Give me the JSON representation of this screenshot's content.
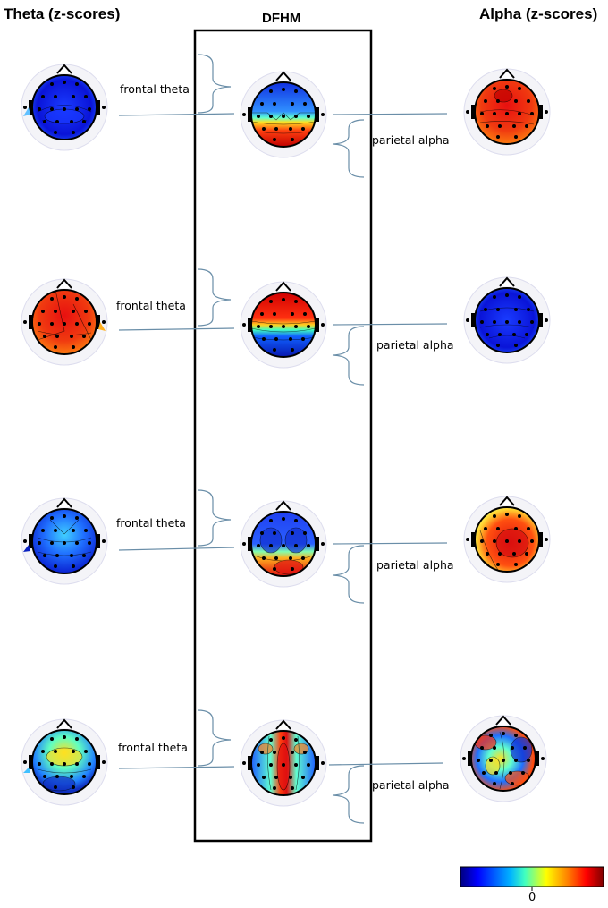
{
  "titles": {
    "theta": "Theta (z-scores)",
    "dfhm": "DFHM",
    "alpha": "Alpha (z-scores)"
  },
  "rows": [
    {
      "frontal_label": "frontal theta",
      "parietal_label": "parietal alpha",
      "theta_map": "theta-map-blue",
      "dfhm_map": "dfhm-map-blue-top-red-bottom",
      "alpha_map": "alpha-map-red"
    },
    {
      "frontal_label": "frontal theta",
      "parietal_label": "parietal alpha",
      "theta_map": "theta-map-red",
      "dfhm_map": "dfhm-map-red-top-blue-bottom",
      "alpha_map": "alpha-map-blue"
    },
    {
      "frontal_label": "frontal theta",
      "parietal_label": "parietal alpha",
      "theta_map": "theta-map-blue-cyan",
      "dfhm_map": "dfhm-map-blue-sides-red-bottom",
      "alpha_map": "alpha-map-red-orange"
    },
    {
      "frontal_label": "frontal theta",
      "parietal_label": "parietal alpha",
      "theta_map": "theta-map-mixed",
      "dfhm_map": "dfhm-map-mixed-red-center",
      "alpha_map": "alpha-map-mixed"
    }
  ],
  "colorbar": {
    "zero_label": "0",
    "colors": [
      "#00007f",
      "#0000ff",
      "#00b4ff",
      "#40ffc0",
      "#ffff00",
      "#ff8000",
      "#ff0000",
      "#7f0000"
    ]
  }
}
